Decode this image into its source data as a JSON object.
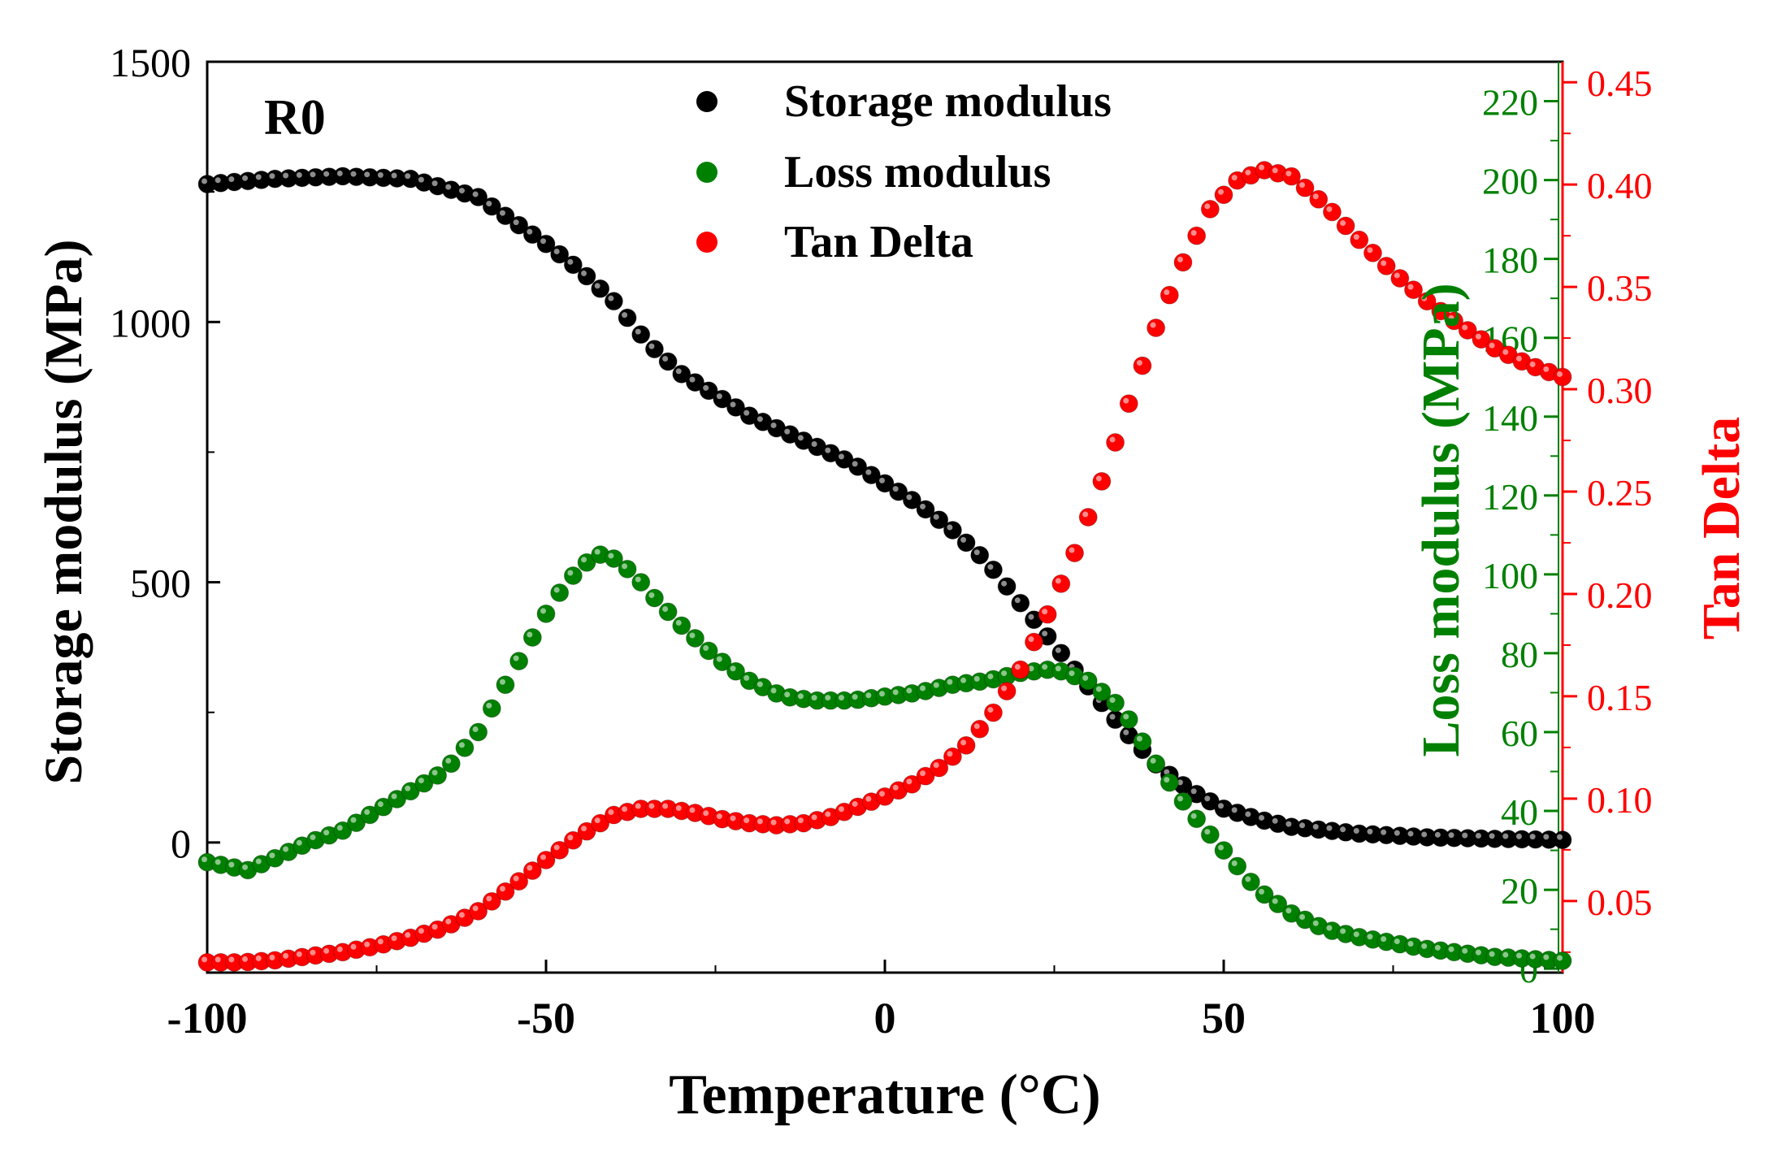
{
  "chart_data": {
    "type": "scatter",
    "panel_label": "R0",
    "xlabel": "Temperature (°C)",
    "xlim": [
      -100,
      100
    ],
    "x_ticks": [
      -100,
      -50,
      0,
      50,
      100
    ],
    "x_tick_labels": [
      "-100",
      "-50",
      "0",
      "50",
      "100"
    ],
    "axes": {
      "left": {
        "label": "Storage modulus (MPa)",
        "lim": [
          -250,
          1500
        ],
        "ticks": [
          0,
          500,
          1000,
          1500
        ],
        "tick_labels": [
          "0",
          "500",
          "1000",
          "1500"
        ],
        "color": "#000000"
      },
      "right_inner": {
        "label": "Loss modulus (MPa)",
        "lim": [
          -1,
          230
        ],
        "ticks": [
          0,
          20,
          40,
          60,
          80,
          100,
          120,
          140,
          160,
          180,
          200,
          220
        ],
        "tick_labels": [
          "0",
          "20",
          "40",
          "60",
          "80",
          "100",
          "120",
          "140",
          "160",
          "180",
          "200",
          "220"
        ],
        "color": "#008000"
      },
      "right_outer": {
        "label": "Tan Delta",
        "lim": [
          0.015,
          0.46
        ],
        "ticks": [
          0.05,
          0.1,
          0.15,
          0.2,
          0.25,
          0.3,
          0.35,
          0.4,
          0.45
        ],
        "tick_labels": [
          "0.05",
          "0.10",
          "0.15",
          "0.20",
          "0.25",
          "0.30",
          "0.35",
          "0.40",
          "0.45"
        ],
        "color": "#ff0000"
      }
    },
    "legend": {
      "placement": "top-center",
      "entries": [
        "Storage modulus",
        "Loss modulus",
        "Tan Delta"
      ]
    },
    "series": [
      {
        "name": "Storage modulus",
        "axis": "left",
        "color": "#000000",
        "points": [
          [
            -100,
            1265
          ],
          [
            -90,
            1275
          ],
          [
            -80,
            1280
          ],
          [
            -70,
            1275
          ],
          [
            -60,
            1240
          ],
          [
            -50,
            1150
          ],
          [
            -45,
            1100
          ],
          [
            -40,
            1040
          ],
          [
            -35,
            960
          ],
          [
            -30,
            900
          ],
          [
            -25,
            860
          ],
          [
            -20,
            820
          ],
          [
            -15,
            790
          ],
          [
            -10,
            760
          ],
          [
            -5,
            730
          ],
          [
            0,
            690
          ],
          [
            5,
            650
          ],
          [
            10,
            600
          ],
          [
            15,
            540
          ],
          [
            20,
            460
          ],
          [
            25,
            380
          ],
          [
            30,
            300
          ],
          [
            35,
            220
          ],
          [
            40,
            150
          ],
          [
            45,
            100
          ],
          [
            50,
            65
          ],
          [
            55,
            45
          ],
          [
            60,
            30
          ],
          [
            70,
            17
          ],
          [
            80,
            10
          ],
          [
            90,
            7
          ],
          [
            100,
            5
          ]
        ]
      },
      {
        "name": "Loss modulus",
        "axis": "right_inner",
        "color": "#008000",
        "points": [
          [
            -100,
            27
          ],
          [
            -97,
            26
          ],
          [
            -94,
            25
          ],
          [
            -90,
            28
          ],
          [
            -85,
            32
          ],
          [
            -80,
            35
          ],
          [
            -75,
            40
          ],
          [
            -70,
            45
          ],
          [
            -65,
            50
          ],
          [
            -60,
            60
          ],
          [
            -55,
            75
          ],
          [
            -50,
            90
          ],
          [
            -47,
            98
          ],
          [
            -44,
            103
          ],
          [
            -42,
            105
          ],
          [
            -40,
            104
          ],
          [
            -37,
            100
          ],
          [
            -34,
            94
          ],
          [
            -30,
            87
          ],
          [
            -25,
            79
          ],
          [
            -20,
            73
          ],
          [
            -15,
            69
          ],
          [
            -10,
            68
          ],
          [
            -5,
            68
          ],
          [
            0,
            69
          ],
          [
            5,
            70
          ],
          [
            10,
            72
          ],
          [
            15,
            73
          ],
          [
            20,
            75
          ],
          [
            25,
            76
          ],
          [
            30,
            73
          ],
          [
            35,
            66
          ],
          [
            40,
            52
          ],
          [
            45,
            40
          ],
          [
            50,
            30
          ],
          [
            55,
            20
          ],
          [
            60,
            14
          ],
          [
            65,
            10
          ],
          [
            70,
            8
          ],
          [
            80,
            5
          ],
          [
            90,
            3
          ],
          [
            100,
            2
          ]
        ]
      },
      {
        "name": "Tan Delta",
        "axis": "right_outer",
        "color": "#ff0000",
        "points": [
          [
            -100,
            0.02
          ],
          [
            -95,
            0.02
          ],
          [
            -90,
            0.021
          ],
          [
            -85,
            0.023
          ],
          [
            -80,
            0.025
          ],
          [
            -75,
            0.028
          ],
          [
            -70,
            0.032
          ],
          [
            -65,
            0.037
          ],
          [
            -60,
            0.045
          ],
          [
            -55,
            0.057
          ],
          [
            -50,
            0.07
          ],
          [
            -45,
            0.082
          ],
          [
            -40,
            0.092
          ],
          [
            -36,
            0.095
          ],
          [
            -32,
            0.095
          ],
          [
            -28,
            0.093
          ],
          [
            -24,
            0.09
          ],
          [
            -20,
            0.088
          ],
          [
            -16,
            0.087
          ],
          [
            -12,
            0.088
          ],
          [
            -8,
            0.091
          ],
          [
            -4,
            0.096
          ],
          [
            0,
            0.101
          ],
          [
            4,
            0.107
          ],
          [
            8,
            0.115
          ],
          [
            12,
            0.126
          ],
          [
            16,
            0.142
          ],
          [
            20,
            0.163
          ],
          [
            24,
            0.19
          ],
          [
            28,
            0.22
          ],
          [
            32,
            0.255
          ],
          [
            36,
            0.293
          ],
          [
            40,
            0.33
          ],
          [
            44,
            0.362
          ],
          [
            48,
            0.388
          ],
          [
            52,
            0.402
          ],
          [
            56,
            0.407
          ],
          [
            60,
            0.404
          ],
          [
            65,
            0.39
          ],
          [
            70,
            0.373
          ],
          [
            75,
            0.357
          ],
          [
            80,
            0.343
          ],
          [
            85,
            0.331
          ],
          [
            90,
            0.32
          ],
          [
            95,
            0.312
          ],
          [
            100,
            0.306
          ]
        ]
      }
    ]
  }
}
